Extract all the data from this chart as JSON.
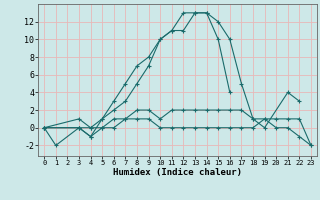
{
  "xlabel": "Humidex (Indice chaleur)",
  "bg_color": "#cde8e8",
  "grid_color": "#e8b8b8",
  "line_color": "#1a6b6b",
  "xlim": [
    -0.5,
    23.5
  ],
  "ylim": [
    -3.2,
    14.0
  ],
  "xticks": [
    0,
    1,
    2,
    3,
    4,
    5,
    6,
    7,
    8,
    9,
    10,
    11,
    12,
    13,
    14,
    15,
    16,
    17,
    18,
    19,
    20,
    21,
    22,
    23
  ],
  "yticks": [
    -2,
    0,
    2,
    4,
    6,
    8,
    10,
    12
  ],
  "lines": [
    {
      "x": [
        0,
        1,
        3,
        4,
        5,
        6,
        7,
        8,
        9,
        10,
        11,
        12,
        13,
        14,
        15,
        16
      ],
      "y": [
        0,
        -2,
        0,
        -1,
        1,
        3,
        5,
        7,
        8,
        10,
        11,
        13,
        13,
        13,
        10,
        4
      ]
    },
    {
      "x": [
        0,
        3,
        4,
        5,
        6,
        7,
        8,
        9,
        10,
        11,
        12,
        13,
        14,
        15,
        16,
        17,
        18,
        19,
        21,
        22
      ],
      "y": [
        0,
        0,
        0,
        1,
        2,
        3,
        5,
        7,
        10,
        11,
        11,
        13,
        13,
        12,
        10,
        5,
        1,
        0,
        4,
        3
      ]
    },
    {
      "x": [
        0,
        3,
        4,
        5,
        6,
        7,
        8,
        9,
        10,
        11,
        12,
        13,
        14,
        15,
        16,
        17,
        18,
        19,
        20,
        21,
        22,
        23
      ],
      "y": [
        0,
        1,
        0,
        0,
        1,
        1,
        2,
        2,
        1,
        2,
        2,
        2,
        2,
        2,
        2,
        2,
        1,
        1,
        1,
        1,
        1,
        -2
      ]
    },
    {
      "x": [
        0,
        3,
        4,
        5,
        6,
        7,
        8,
        9,
        10,
        11,
        12,
        13,
        14,
        15,
        16,
        17,
        18,
        19,
        20,
        21,
        22,
        23
      ],
      "y": [
        0,
        0,
        -1,
        0,
        0,
        1,
        1,
        1,
        0,
        0,
        0,
        0,
        0,
        0,
        0,
        0,
        0,
        1,
        0,
        0,
        -1,
        -2
      ]
    }
  ]
}
